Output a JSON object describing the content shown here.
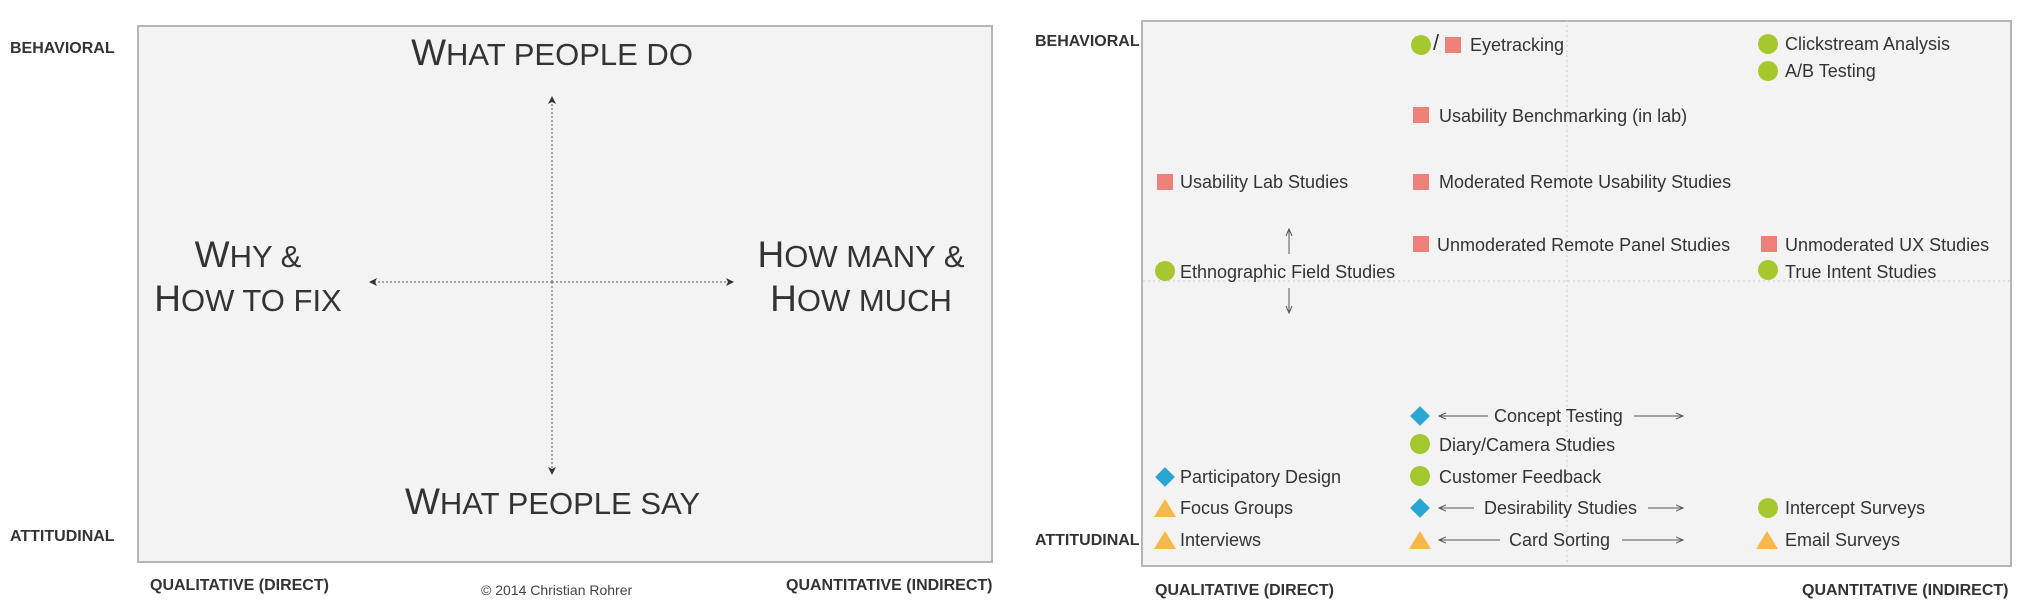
{
  "left_panel": {
    "y_top_label": "BEHAVIORAL",
    "y_bottom_label": "ATTITUDINAL",
    "x_left_label": "QUALITATIVE (DIRECT)",
    "x_right_label": "QUANTITATIVE (INDIRECT)",
    "copyright": "© 2014 Christian Rohrer",
    "top": {
      "cap": "W",
      "rest": "HAT PEOPLE DO"
    },
    "bottom": {
      "cap": "W",
      "rest": "HAT PEOPLE SAY"
    },
    "left": {
      "line1_cap": "W",
      "line1_rest": "HY &",
      "line2_cap": "H",
      "line2_rest": "OW TO FIX"
    },
    "right": {
      "line1_cap": "H",
      "line1_rest": "OW MANY &",
      "line2_cap": "H",
      "line2_rest": "OW MUCH"
    }
  },
  "right_panel": {
    "y_top_label": "BEHAVIORAL",
    "y_bottom_label": "ATTITUDINAL",
    "x_left_label": "QUALITATIVE (DIRECT)",
    "x_right_label": "QUANTITATIVE (INDIRECT)",
    "slash": "/",
    "methods": {
      "eyetracking": "Eyetracking",
      "clickstream": "Clickstream Analysis",
      "ab_testing": "A/B Testing",
      "usability_benchmarking": "Usability Benchmarking (in lab)",
      "usability_lab": "Usability Lab Studies",
      "moderated_remote": "Moderated Remote Usability Studies",
      "unmoderated_panel": "Unmoderated Remote Panel Studies",
      "unmoderated_ux": "Unmoderated UX Studies",
      "ethnographic": "Ethnographic Field Studies",
      "true_intent": "True Intent Studies",
      "concept_testing": "Concept Testing",
      "diary_camera": "Diary/Camera Studies",
      "participatory": "Participatory Design",
      "customer_feedback": "Customer Feedback",
      "focus_groups": "Focus Groups",
      "desirability": "Desirability Studies",
      "intercept": "Intercept Surveys",
      "interviews": "Interviews",
      "card_sorting": "Card Sorting",
      "email_surveys": "Email Surveys"
    }
  },
  "colors": {
    "circle": "#a6c82f",
    "square": "#ef7f79",
    "diamond": "#2aa6d4",
    "triangle": "#f7b84b",
    "panel_bg": "#f3f3f3"
  }
}
